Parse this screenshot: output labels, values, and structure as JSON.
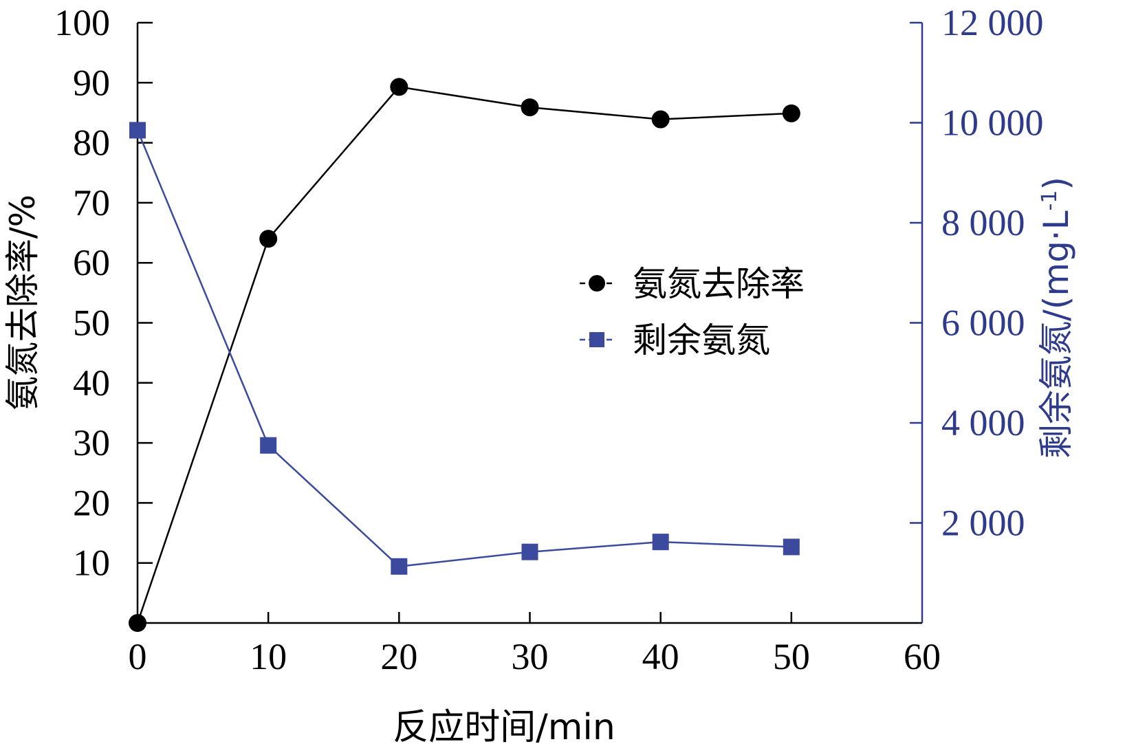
{
  "colors": {
    "left_axis": "#000000",
    "right_axis": "#2e3a8c",
    "series1": "#000000",
    "series2": "#3b4a9c"
  },
  "chart_data": {
    "type": "line",
    "xlabel": "反应时间/min",
    "ylabel_left": "氨氮去除率/%",
    "ylabel_right": "剩余氨氮/(mg·L",
    "ylabel_right_sup": "-1",
    "ylabel_right_close": ")",
    "xlim": [
      0,
      60
    ],
    "ylim_left": [
      0,
      100
    ],
    "ylim_right": [
      0,
      12000
    ],
    "x_ticks": [
      "0",
      "10",
      "20",
      "30",
      "40",
      "50",
      "60"
    ],
    "y_left_ticks": [
      "10",
      "20",
      "30",
      "40",
      "50",
      "60",
      "70",
      "80",
      "90",
      "100"
    ],
    "y_right_ticks": [
      "2 000",
      "4 000",
      "6 000",
      "8 000",
      "10 000",
      "12 000"
    ],
    "legend_position": "center-right",
    "series": [
      {
        "name": "氨氮去除率",
        "axis": "left",
        "marker": "circle",
        "x": [
          0,
          10,
          20,
          30,
          40,
          50
        ],
        "y": [
          0,
          64,
          89.3,
          85.9,
          83.9,
          84.9
        ]
      },
      {
        "name": "剩余氨氮",
        "axis": "right",
        "marker": "square",
        "x": [
          0,
          10,
          20,
          30,
          40,
          50
        ],
        "y": [
          9850,
          3550,
          1130,
          1420,
          1620,
          1520
        ]
      }
    ]
  }
}
